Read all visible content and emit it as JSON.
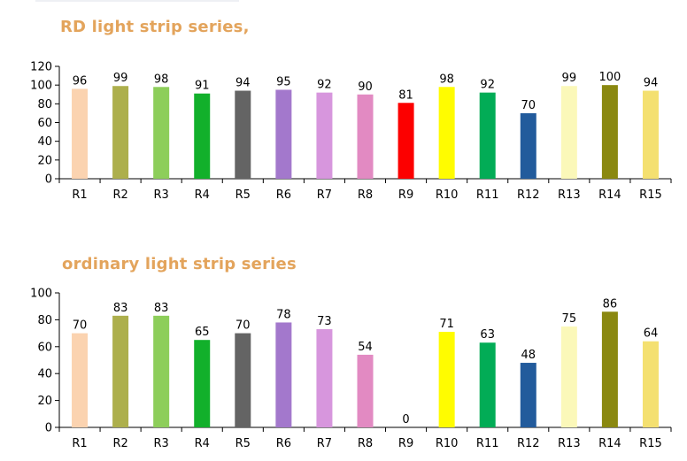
{
  "colors": {
    "title": "#e3a45c",
    "series": [
      "#fbd3b0",
      "#adaf4c",
      "#8dce5a",
      "#12b02b",
      "#646464",
      "#a378cc",
      "#d796dd",
      "#e28ac2",
      "#fc0000",
      "#fffc00",
      "#02ac56",
      "#225b9c",
      "#fbf8b9",
      "#8a8810",
      "#f4e070"
    ]
  },
  "chart_data": [
    {
      "type": "bar",
      "title": "RD light strip series,",
      "categories": [
        "R1",
        "R2",
        "R3",
        "R4",
        "R5",
        "R6",
        "R7",
        "R8",
        "R9",
        "R10",
        "R11",
        "R12",
        "R13",
        "R14",
        "R15"
      ],
      "values": [
        96,
        99,
        98,
        91,
        94,
        95,
        92,
        90,
        81,
        98,
        92,
        70,
        99,
        100,
        94
      ],
      "ylim": [
        0,
        120
      ],
      "yticks": [
        0,
        20,
        40,
        60,
        80,
        100,
        120
      ],
      "data_labels": true,
      "legend": "none",
      "grid": false
    },
    {
      "type": "bar",
      "title": "ordinary light strip series",
      "categories": [
        "R1",
        "R2",
        "R3",
        "R4",
        "R5",
        "R6",
        "R7",
        "R8",
        "R9",
        "R10",
        "R11",
        "R12",
        "R13",
        "R14",
        "R15"
      ],
      "values": [
        70,
        83,
        83,
        65,
        70,
        78,
        73,
        54,
        0,
        71,
        63,
        48,
        75,
        86,
        64
      ],
      "ylim": [
        0,
        100
      ],
      "yticks": [
        0,
        20,
        40,
        60,
        80,
        100
      ],
      "data_labels": true,
      "legend": "none",
      "grid": false
    }
  ]
}
